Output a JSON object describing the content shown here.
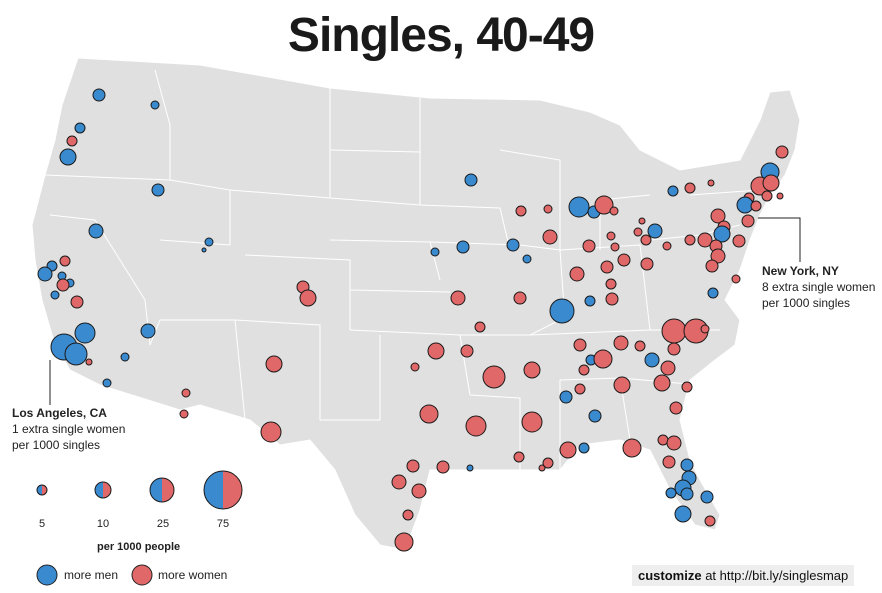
{
  "title": "Singles, 40-49",
  "colors": {
    "men": "#3a8ad0",
    "women": "#e06868",
    "land": "#e0e0e0",
    "border": "#ffffff"
  },
  "callouts": {
    "new_york": {
      "city": "New York, NY",
      "line1": "8 extra single women",
      "line2": "per 1000 singles"
    },
    "los_angeles": {
      "city": "Los Angeles, CA",
      "line1": "1 extra single women",
      "line2": "per 1000 singles"
    }
  },
  "legend": {
    "sizes": [
      "5",
      "10",
      "25",
      "75"
    ],
    "unit": "per 1000 people",
    "men_label": "more men",
    "women_label": "more women"
  },
  "footer": {
    "bold": "customize",
    "rest": " at http://bit.ly/singlesmap"
  }
}
